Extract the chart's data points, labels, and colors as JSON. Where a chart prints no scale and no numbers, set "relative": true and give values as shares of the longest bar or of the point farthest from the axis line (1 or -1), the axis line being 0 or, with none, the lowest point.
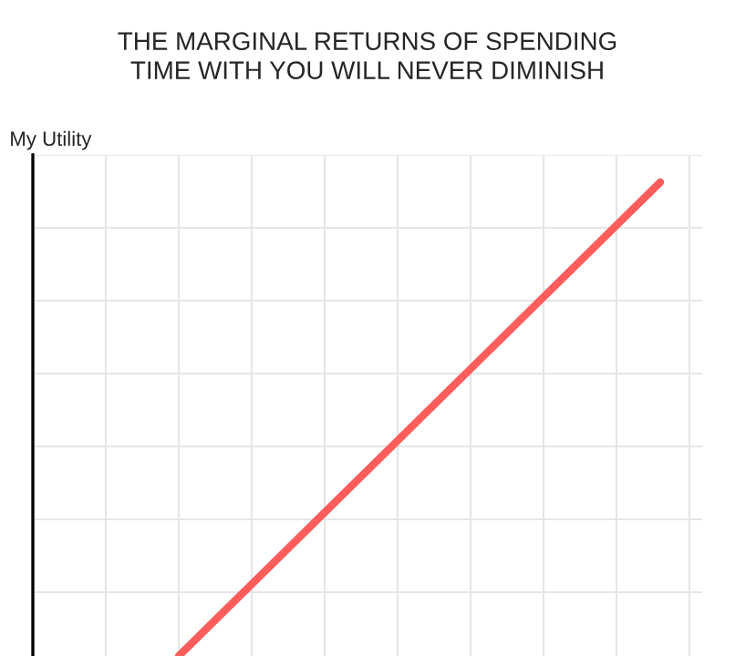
{
  "chart_data": {
    "type": "line",
    "title": "THE MARGINAL RETURNS OF SPENDING\nTIME WITH YOU WILL NEVER DIMINISH",
    "ylabel": "My Utility",
    "relative": true,
    "categories": [
      null,
      null
    ],
    "series": [
      {
        "color": "#ff5c5c",
        "values": [
          0,
          1
        ]
      }
    ],
    "grid": true,
    "tick_labels": false,
    "marker": "none",
    "line_style": "solid"
  }
}
